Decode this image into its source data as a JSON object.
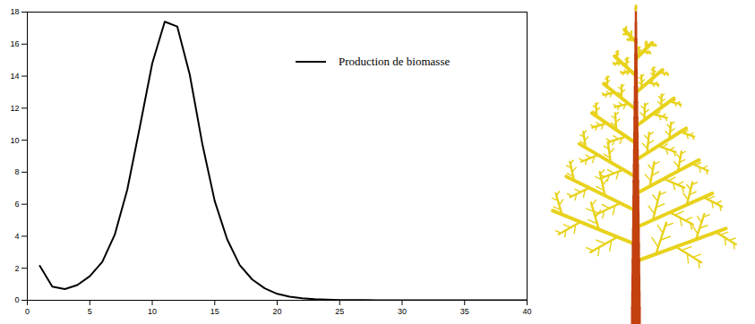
{
  "chart_data": {
    "type": "line",
    "x": [
      1,
      2,
      3,
      4,
      5,
      6,
      7,
      8,
      9,
      10,
      11,
      12,
      13,
      14,
      15,
      16,
      17,
      18,
      19,
      20,
      21,
      22,
      23,
      24,
      25,
      26,
      27,
      28,
      29,
      30,
      31,
      32,
      33,
      34,
      35,
      36,
      37,
      38,
      39,
      40
    ],
    "series": [
      {
        "name": "Production de biomasse",
        "color": "#000000",
        "values": [
          2.15,
          0.85,
          0.7,
          0.95,
          1.5,
          2.4,
          4.1,
          6.9,
          10.8,
          14.8,
          17.4,
          17.1,
          14.1,
          9.8,
          6.2,
          3.8,
          2.2,
          1.3,
          0.75,
          0.4,
          0.22,
          0.12,
          0.07,
          0.04,
          0.02,
          0.01,
          0.01,
          0,
          0,
          0,
          0,
          0,
          0,
          0,
          0,
          0,
          0,
          0,
          0,
          0
        ]
      }
    ],
    "xlim": [
      0,
      40
    ],
    "xticks": [
      0,
      5,
      10,
      15,
      20,
      25,
      30,
      35,
      40
    ],
    "ylim": [
      0,
      18
    ],
    "yticks": [
      0,
      2,
      4,
      6,
      8,
      10,
      12,
      14,
      16,
      18
    ],
    "legend": "top-right",
    "grid": false
  }
}
